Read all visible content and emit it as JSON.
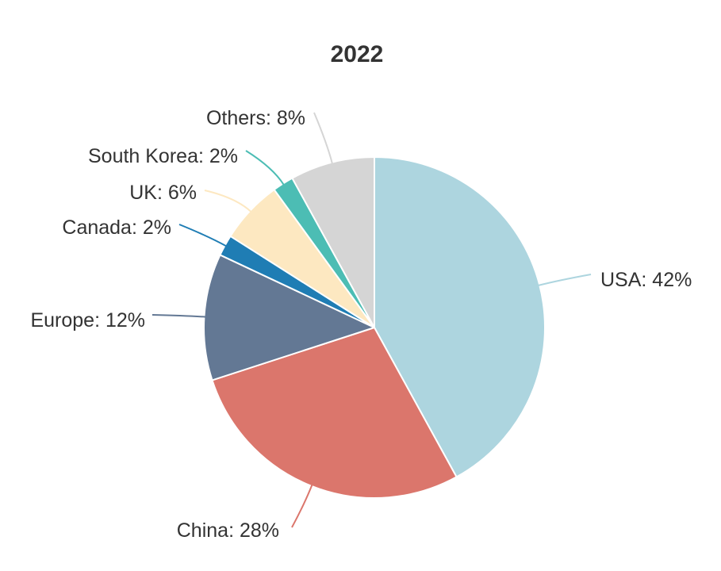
{
  "chart_data": {
    "type": "pie",
    "title": "2022",
    "slices": [
      {
        "label": "USA",
        "value": 42,
        "color": "#add5df",
        "display": "USA: 42%"
      },
      {
        "label": "China",
        "value": 28,
        "color": "#db766c",
        "display": "China: 28%"
      },
      {
        "label": "Europe",
        "value": 12,
        "color": "#637894",
        "display": "Europe: 12%"
      },
      {
        "label": "Canada",
        "value": 2,
        "color": "#1f7db4",
        "display": "Canada: 2%"
      },
      {
        "label": "UK",
        "value": 6,
        "color": "#fde8c1",
        "display": "UK: 6%"
      },
      {
        "label": "South Korea",
        "value": 2,
        "color": "#4cbdb4",
        "display": "South Korea: 2%"
      },
      {
        "label": "Others",
        "value": 8,
        "color": "#d5d5d5",
        "display": "Others: 8%"
      }
    ]
  }
}
